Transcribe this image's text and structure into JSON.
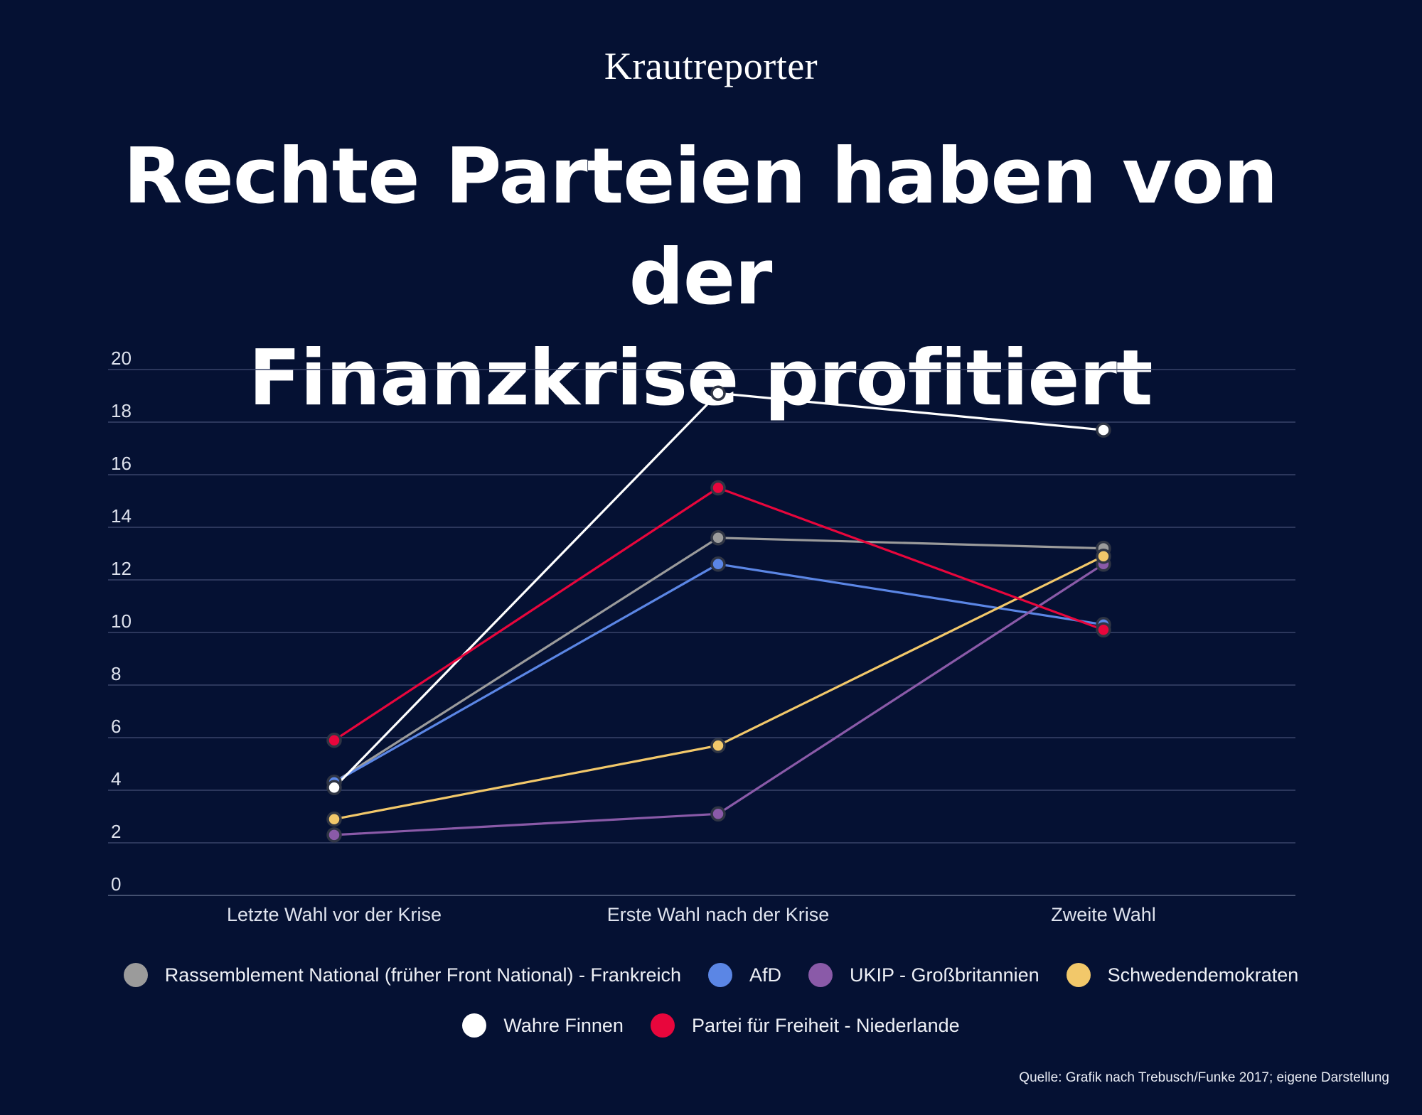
{
  "brand": "Krautreporter",
  "title_line1": "Rechte Parteien haben von der",
  "title_line2": "Finanzkrise profitiert",
  "source": "Quelle: Grafik nach Trebusch/Funke 2017; eigene Darstellung",
  "chart_data": {
    "type": "line",
    "title": "Rechte Parteien haben von der Finanzkrise profitiert",
    "xlabel": "",
    "ylabel": "",
    "ylim": [
      0,
      20
    ],
    "yticks": [
      0,
      2,
      4,
      6,
      8,
      10,
      12,
      14,
      16,
      18,
      20
    ],
    "grid": true,
    "legend_position": "bottom",
    "categories": [
      "Letzte Wahl vor der Krise",
      "Erste Wahl nach der Krise",
      "Zweite Wahl"
    ],
    "series": [
      {
        "name": "Rassemblement National (früher Front National) - Frankreich",
        "color": "#9b9b9b",
        "values": [
          4.3,
          13.6,
          13.2
        ]
      },
      {
        "name": "AfD",
        "color": "#5b86e5",
        "values": [
          4.3,
          12.6,
          10.3
        ]
      },
      {
        "name": "UKIP - Großbritannien",
        "color": "#8a5aa8",
        "values": [
          2.3,
          3.1,
          12.6
        ]
      },
      {
        "name": "Schwedendemokraten",
        "color": "#f2c86a",
        "values": [
          2.9,
          5.7,
          12.9
        ]
      },
      {
        "name": "Wahre Finnen",
        "color": "#ffffff",
        "values": [
          4.1,
          19.1,
          17.7
        ]
      },
      {
        "name": "Partei für Freiheit - Niederlande",
        "color": "#e8063c",
        "values": [
          5.9,
          15.5,
          10.1
        ]
      }
    ]
  }
}
